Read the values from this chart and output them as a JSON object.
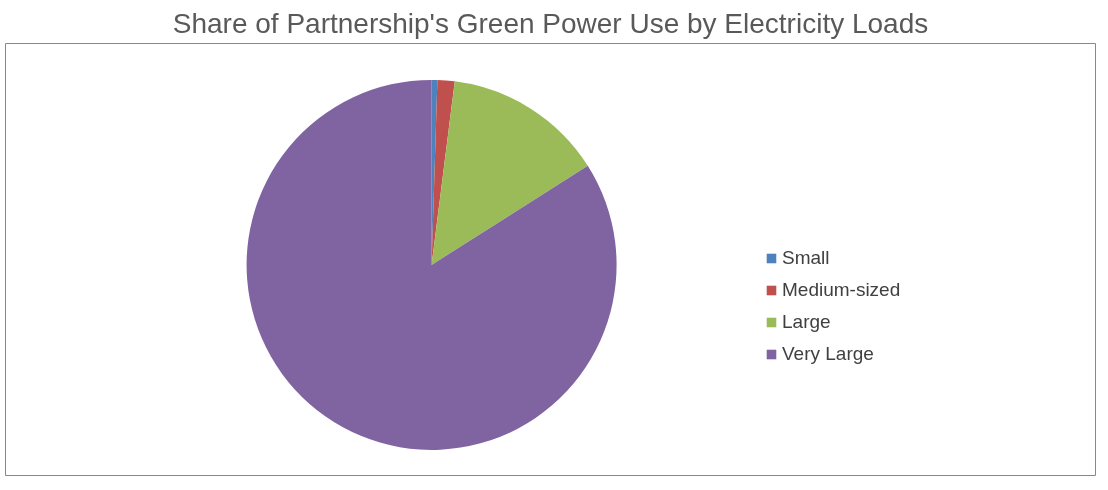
{
  "chart_data": {
    "type": "pie",
    "title": "Share of Partnership's Green Power Use by Electricity Loads",
    "categories": [
      "Small",
      "Medium-sized",
      "Large",
      "Very Large"
    ],
    "values": [
      0.5,
      1.5,
      14,
      84
    ],
    "colors": [
      "#4f81bd",
      "#c0504d",
      "#9bbb59",
      "#8064a2"
    ],
    "legend": "right"
  }
}
